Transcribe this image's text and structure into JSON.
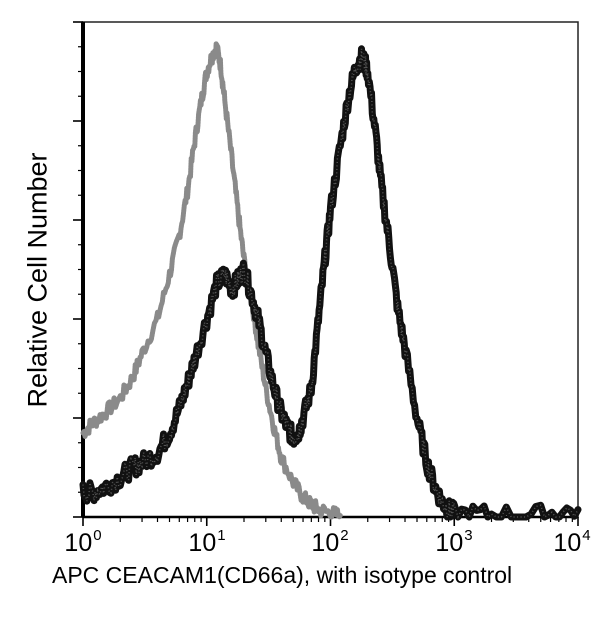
{
  "chart_data": {
    "type": "line",
    "title": "",
    "xlabel": "APC CEACAM1(CD66a), with isotype control",
    "ylabel": "Relative Cell Number",
    "x_scale": "log",
    "xlim": [
      1,
      10000
    ],
    "ylim": [
      0,
      100
    ],
    "grid": false,
    "legend": null,
    "x_ticks": [
      {
        "base": "10",
        "exp": "0",
        "value": 1
      },
      {
        "base": "10",
        "exp": "1",
        "value": 10
      },
      {
        "base": "10",
        "exp": "2",
        "value": 100
      },
      {
        "base": "10",
        "exp": "3",
        "value": 1000
      },
      {
        "base": "10",
        "exp": "4",
        "value": 10000
      }
    ],
    "y_ticks_major": 5,
    "y_tick_labels": [],
    "series": [
      {
        "name": "Isotype control",
        "color": "#8a8a8a",
        "style": "dotted-noisy",
        "x": [
          1.0,
          1.2,
          1.5,
          2.0,
          2.5,
          3.0,
          4.0,
          5.0,
          6.0,
          7.0,
          8.0,
          9.0,
          10.0,
          11.0,
          12.0,
          13.0,
          14.0,
          16.0,
          18.0,
          20.0,
          23.0,
          26.0,
          30.0,
          35.0,
          40.0,
          50.0,
          60.0,
          70.0,
          80.0,
          100.0,
          120.0
        ],
        "values": [
          17,
          19,
          21,
          24,
          28,
          33,
          40,
          49,
          57,
          66,
          76,
          84,
          90,
          93,
          95,
          91,
          84,
          72,
          61,
          52,
          44,
          35,
          26,
          18,
          12,
          7,
          4,
          2.5,
          1.5,
          0.8,
          0.3
        ]
      },
      {
        "name": "CEACAM1 (CD66a)",
        "color": "#111111",
        "style": "thick-noisy",
        "x": [
          1.0,
          1.2,
          1.5,
          2.0,
          2.5,
          3.0,
          4.0,
          5.0,
          6.0,
          7.0,
          8.0,
          10.0,
          12.0,
          14.0,
          16.0,
          18.0,
          20.0,
          23.0,
          26.0,
          30.0,
          35.0,
          40.0,
          45.0,
          50.0,
          55.0,
          60.0,
          70.0,
          80.0,
          90.0,
          100.0,
          120.0,
          140.0,
          160.0,
          180.0,
          200.0,
          230.0,
          260.0,
          300.0,
          350.0,
          400.0,
          500.0,
          600.0,
          700.0,
          800.0,
          900.0,
          1000.0,
          2000.0,
          5000.0,
          10000.0
        ],
        "values": [
          5,
          5,
          6,
          8,
          10,
          11,
          13,
          17,
          22,
          27,
          32,
          40,
          47,
          49,
          46,
          48,
          50,
          45,
          40,
          33,
          26,
          21,
          18,
          16,
          17,
          20,
          26,
          40,
          52,
          62,
          75,
          85,
          91,
          93,
          90,
          78,
          66,
          55,
          42,
          34,
          20,
          11,
          6,
          3,
          1.5,
          0.8,
          0.5,
          0.5,
          1.5
        ]
      }
    ]
  },
  "axes": {
    "ylabel": "Relative Cell Number",
    "xlabel": "APC CEACAM1(CD66a), with isotype control",
    "xticks": [
      {
        "base": "10",
        "exp": "0"
      },
      {
        "base": "10",
        "exp": "1"
      },
      {
        "base": "10",
        "exp": "2"
      },
      {
        "base": "10",
        "exp": "3"
      },
      {
        "base": "10",
        "exp": "4"
      }
    ]
  }
}
